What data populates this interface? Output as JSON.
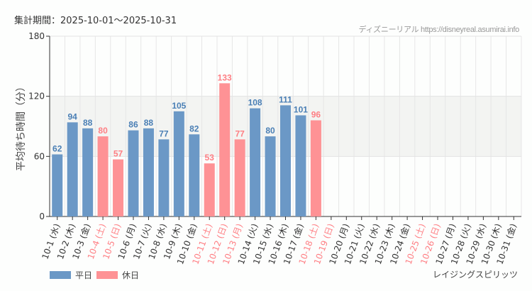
{
  "header": {
    "period": "集計期間：2025-10-01～2025-10-31",
    "credit": "ディズニーリアル https://disneyreal.asumirai.info"
  },
  "ride": "レイジングスピリッツ",
  "colors": {
    "weekday": "#6b98c6",
    "holiday": "#fe9295",
    "holiday_text": "#fe7f84",
    "weekday_text": "#4a7fb5",
    "band": "#f3f4f2"
  },
  "chart_data": {
    "type": "bar",
    "title": "",
    "xlabel": "",
    "ylabel": "平均待ち時間（分）",
    "ylim": [
      0,
      180
    ],
    "yticks": [
      "0",
      "60",
      "120",
      "180"
    ],
    "grid": true,
    "shaded_band": [
      60,
      120
    ],
    "legend": [
      {
        "name": "平日",
        "type": "weekday"
      },
      {
        "name": "休日",
        "type": "holiday"
      }
    ],
    "legend_position": "bottom-left",
    "categories": [
      "10-1 (水)",
      "10-2 (木)",
      "10-3 (金)",
      "10-4 (土)",
      "10-5 (日)",
      "10-6 (月)",
      "10-7 (火)",
      "10-8 (水)",
      "10-9 (木)",
      "10-10 (金)",
      "10-11 (土)",
      "10-12 (日)",
      "10-13 (月)",
      "10-14 (火)",
      "10-15 (水)",
      "10-16 (木)",
      "10-17 (金)",
      "10-18 (土)",
      "10-19 (日)",
      "10-20 (月)",
      "10-21 (火)",
      "10-22 (水)",
      "10-23 (木)",
      "10-24 (金)",
      "10-25 (土)",
      "10-26 (日)",
      "10-27 (月)",
      "10-28 (火)",
      "10-29 (水)",
      "10-30 (木)",
      "10-31 (金)"
    ],
    "holiday": [
      false,
      false,
      false,
      true,
      true,
      false,
      false,
      false,
      false,
      false,
      true,
      true,
      true,
      false,
      false,
      false,
      false,
      true,
      true,
      false,
      false,
      false,
      false,
      false,
      true,
      true,
      false,
      false,
      false,
      false,
      false
    ],
    "values": [
      62,
      94,
      88,
      80,
      57,
      86,
      88,
      77,
      105,
      82,
      53,
      133,
      77,
      108,
      80,
      111,
      101,
      96,
      null,
      null,
      null,
      null,
      null,
      null,
      null,
      null,
      null,
      null,
      null,
      null,
      null
    ]
  }
}
